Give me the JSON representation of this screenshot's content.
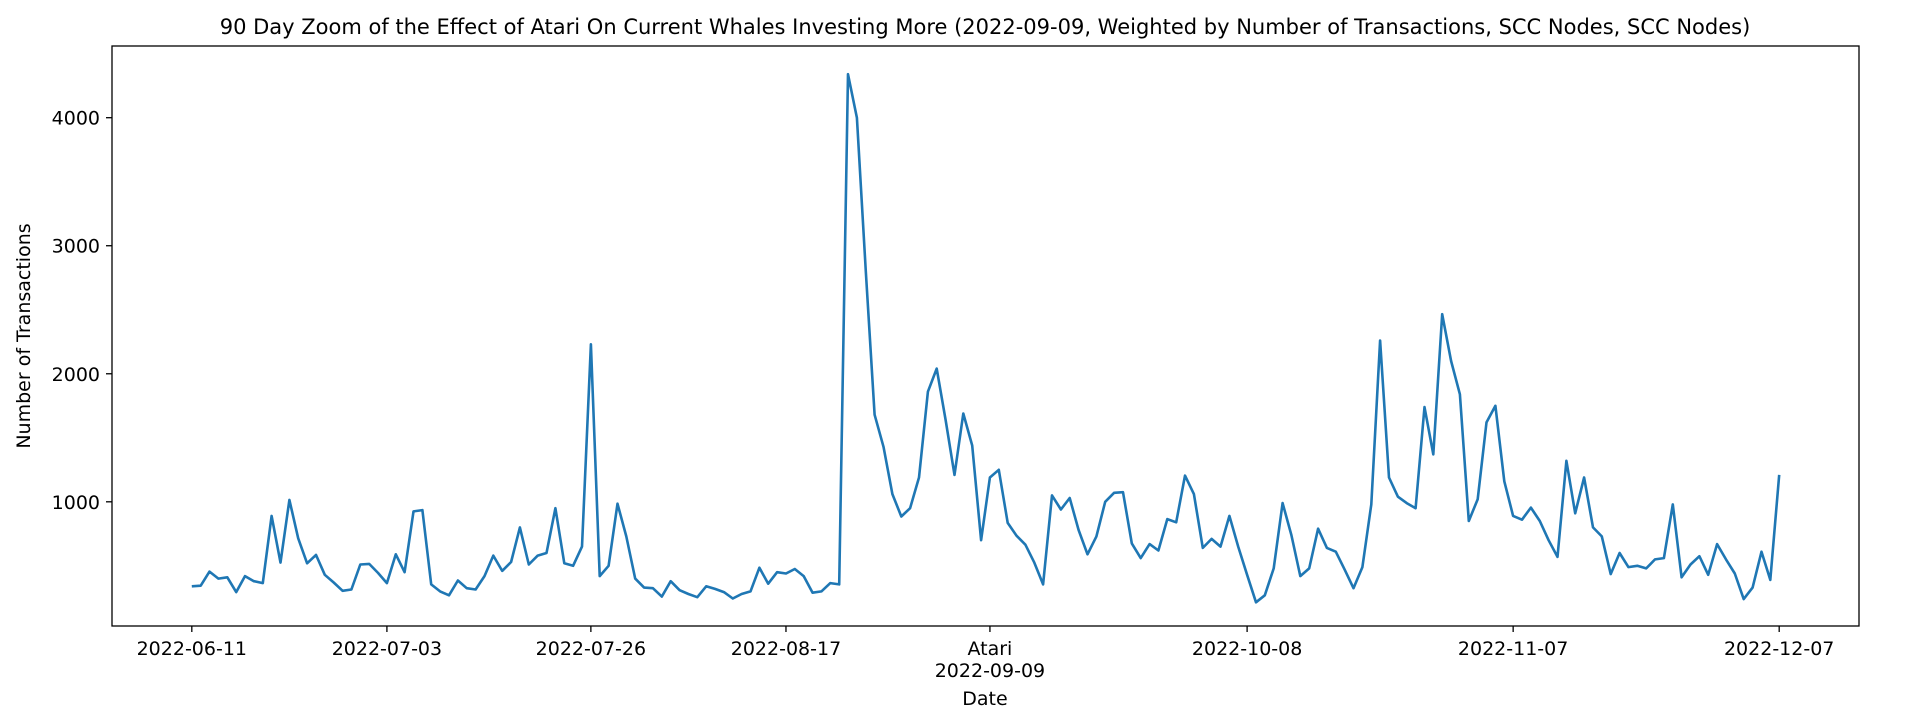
{
  "chart_data": {
    "type": "line",
    "title": "90 Day Zoom of the Effect of Atari On Current Whales Investing More (2022-09-09, Weighted by Number of Transactions, SCC Nodes, SCC Nodes)",
    "xlabel": "Date",
    "ylabel": "Number of Transactions",
    "xlim": [
      "2022-06-02",
      "2022-12-16"
    ],
    "ylim": [
      30,
      4560
    ],
    "grid": false,
    "line_color": "#1f77b4",
    "annotation": {
      "date": "2022-09-09",
      "label": "Atari"
    },
    "x_ticks": [
      {
        "date": "2022-06-11",
        "label": "2022-06-11"
      },
      {
        "date": "2022-07-03",
        "label": "2022-07-03"
      },
      {
        "date": "2022-07-26",
        "label": "2022-07-26"
      },
      {
        "date": "2022-08-17",
        "label": "2022-08-17"
      },
      {
        "date": "2022-09-09",
        "label": "2022-09-09"
      },
      {
        "date": "2022-10-08",
        "label": "2022-10-08"
      },
      {
        "date": "2022-11-07",
        "label": "2022-11-07"
      },
      {
        "date": "2022-12-07",
        "label": "2022-12-07"
      }
    ],
    "y_ticks": [
      {
        "value": 1000,
        "label": "1000"
      },
      {
        "value": 2000,
        "label": "2000"
      },
      {
        "value": 3000,
        "label": "3000"
      },
      {
        "value": 4000,
        "label": "4000"
      }
    ],
    "series": [
      {
        "x": [
          "2022-06-11",
          "2022-06-12",
          "2022-06-13",
          "2022-06-14",
          "2022-06-15",
          "2022-06-16",
          "2022-06-17",
          "2022-06-18",
          "2022-06-19",
          "2022-06-20",
          "2022-06-21",
          "2022-06-22",
          "2022-06-23",
          "2022-06-24",
          "2022-06-25",
          "2022-06-26",
          "2022-06-27",
          "2022-06-28",
          "2022-06-29",
          "2022-06-30",
          "2022-07-01",
          "2022-07-02",
          "2022-07-03",
          "2022-07-04",
          "2022-07-05",
          "2022-07-06",
          "2022-07-07",
          "2022-07-08",
          "2022-07-09",
          "2022-07-10",
          "2022-07-11",
          "2022-07-12",
          "2022-07-13",
          "2022-07-14",
          "2022-07-15",
          "2022-07-16",
          "2022-07-17",
          "2022-07-18",
          "2022-07-19",
          "2022-07-20",
          "2022-07-21",
          "2022-07-22",
          "2022-07-23",
          "2022-07-24",
          "2022-07-25",
          "2022-07-26",
          "2022-07-27",
          "2022-07-28",
          "2022-07-29",
          "2022-07-30",
          "2022-07-31",
          "2022-08-01",
          "2022-08-02",
          "2022-08-03",
          "2022-08-04",
          "2022-08-05",
          "2022-08-06",
          "2022-08-07",
          "2022-08-08",
          "2022-08-09",
          "2022-08-10",
          "2022-08-11",
          "2022-08-12",
          "2022-08-13",
          "2022-08-14",
          "2022-08-15",
          "2022-08-16",
          "2022-08-17",
          "2022-08-18",
          "2022-08-19",
          "2022-08-20",
          "2022-08-21",
          "2022-08-22",
          "2022-08-23",
          "2022-08-24",
          "2022-08-25",
          "2022-08-26",
          "2022-08-27",
          "2022-08-28",
          "2022-08-29",
          "2022-08-30",
          "2022-08-31",
          "2022-09-01",
          "2022-09-02",
          "2022-09-03",
          "2022-09-04",
          "2022-09-05",
          "2022-09-06",
          "2022-09-07",
          "2022-09-08",
          "2022-09-09",
          "2022-09-10",
          "2022-09-11",
          "2022-09-12",
          "2022-09-13",
          "2022-09-14",
          "2022-09-15",
          "2022-09-16",
          "2022-09-17",
          "2022-09-18",
          "2022-09-19",
          "2022-09-20",
          "2022-09-21",
          "2022-09-22",
          "2022-09-23",
          "2022-09-24",
          "2022-09-25",
          "2022-09-26",
          "2022-09-27",
          "2022-09-28",
          "2022-09-29",
          "2022-09-30",
          "2022-10-01",
          "2022-10-02",
          "2022-10-03",
          "2022-10-04",
          "2022-10-05",
          "2022-10-06",
          "2022-10-07",
          "2022-10-08",
          "2022-10-09",
          "2022-10-10",
          "2022-10-11",
          "2022-10-12",
          "2022-10-13",
          "2022-10-14",
          "2022-10-15",
          "2022-10-16",
          "2022-10-17",
          "2022-10-18",
          "2022-10-19",
          "2022-10-20",
          "2022-10-21",
          "2022-10-22",
          "2022-10-23",
          "2022-10-24",
          "2022-10-25",
          "2022-10-26",
          "2022-10-27",
          "2022-10-28",
          "2022-10-29",
          "2022-10-30",
          "2022-10-31",
          "2022-11-01",
          "2022-11-02",
          "2022-11-03",
          "2022-11-04",
          "2022-11-05",
          "2022-11-06",
          "2022-11-07",
          "2022-11-08",
          "2022-11-09",
          "2022-11-10",
          "2022-11-11",
          "2022-11-12",
          "2022-11-13",
          "2022-11-14",
          "2022-11-15",
          "2022-11-16",
          "2022-11-17",
          "2022-11-18",
          "2022-11-19",
          "2022-11-20",
          "2022-11-21",
          "2022-11-22",
          "2022-11-23",
          "2022-11-24",
          "2022-11-25",
          "2022-11-26",
          "2022-11-27",
          "2022-11-28",
          "2022-11-29",
          "2022-11-30",
          "2022-12-01",
          "2022-12-02",
          "2022-12-03",
          "2022-12-04",
          "2022-12-05",
          "2022-12-06",
          "2022-12-07"
        ],
        "y": [
          340,
          345,
          455,
          400,
          410,
          295,
          420,
          380,
          365,
          890,
          525,
          1015,
          715,
          520,
          585,
          430,
          370,
          305,
          315,
          510,
          515,
          445,
          365,
          590,
          450,
          925,
          935,
          355,
          300,
          270,
          385,
          325,
          315,
          420,
          580,
          460,
          530,
          800,
          510,
          580,
          600,
          950,
          520,
          500,
          650,
          2230,
          420,
          500,
          985,
          730,
          400,
          330,
          325,
          260,
          380,
          310,
          280,
          255,
          340,
          320,
          295,
          245,
          280,
          300,
          485,
          360,
          450,
          440,
          475,
          420,
          290,
          300,
          365,
          355,
          4340,
          4000,
          2800,
          1680,
          1430,
          1060,
          885,
          950,
          1190,
          1860,
          2040,
          1640,
          1210,
          1690,
          1440,
          700,
          1190,
          1250,
          835,
          735,
          665,
          525,
          355,
          1050,
          940,
          1030,
          780,
          590,
          730,
          1000,
          1070,
          1075,
          675,
          560,
          670,
          620,
          865,
          840,
          1205,
          1060,
          640,
          710,
          650,
          890,
          650,
          430,
          215,
          270,
          480,
          990,
          740,
          420,
          480,
          790,
          640,
          610,
          470,
          325,
          490,
          980,
          2260,
          1190,
          1040,
          990,
          950,
          1740,
          1370,
          2465,
          2100,
          1840,
          850,
          1020,
          1620,
          1750,
          1160,
          890,
          860,
          955,
          850,
          700,
          570,
          1320,
          910,
          1190,
          800,
          730,
          435,
          600,
          490,
          500,
          480,
          550,
          560,
          980,
          410,
          510,
          575,
          430,
          670,
          550,
          440,
          240,
          330,
          610,
          390,
          1210
        ]
      }
    ]
  }
}
